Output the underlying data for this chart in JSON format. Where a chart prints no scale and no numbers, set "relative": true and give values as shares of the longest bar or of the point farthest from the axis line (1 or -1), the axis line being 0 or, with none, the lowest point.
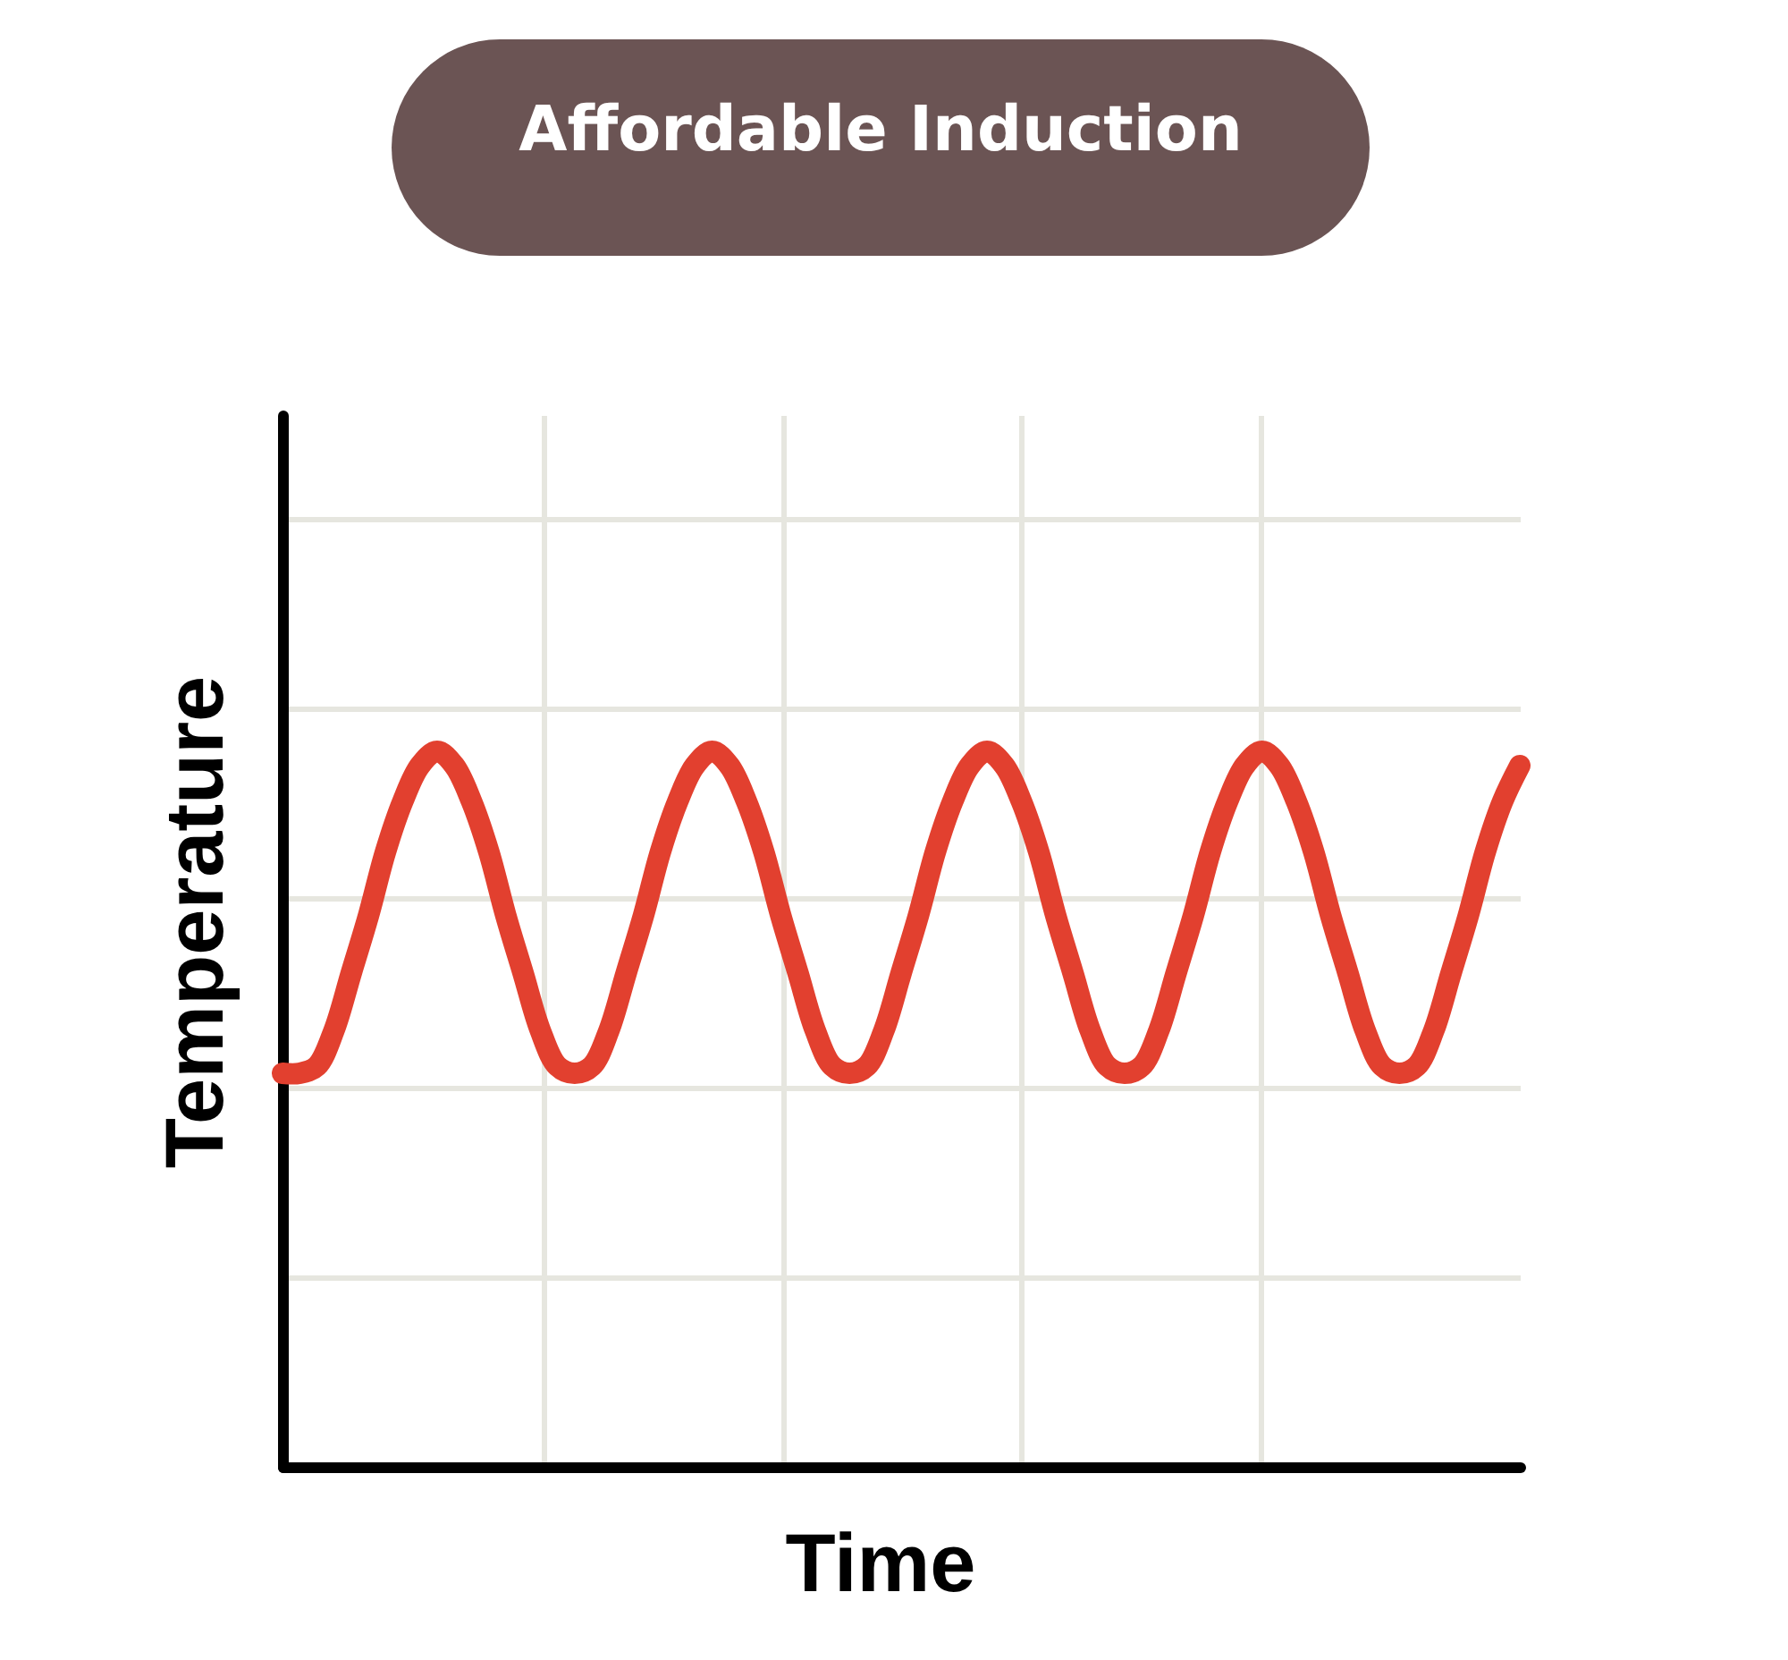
{
  "chart_data": {
    "type": "line",
    "title": "Affordable Induction",
    "xlabel": "Time",
    "ylabel": "Temperature",
    "relative": true,
    "grid": true,
    "categories": [
      null,
      null,
      null,
      null,
      null,
      null,
      null,
      null,
      null,
      null,
      null,
      null,
      null,
      null,
      null,
      null,
      null,
      null,
      null,
      null,
      null,
      null,
      null,
      null,
      null,
      null,
      null,
      null,
      null,
      null,
      null,
      null,
      null,
      null,
      null,
      null,
      null,
      null,
      null,
      null,
      null,
      null,
      null,
      null,
      null,
      null,
      null,
      null,
      null,
      null,
      null,
      null,
      null,
      null,
      null,
      null,
      null,
      null,
      null,
      null,
      null,
      null,
      null,
      null,
      null,
      null,
      null,
      null,
      null,
      null,
      null,
      null,
      null
    ],
    "series": [
      {
        "color": "#e2402f",
        "values": [
          0.55,
          0.55,
          0.56,
          0.61,
          0.69,
          0.77,
          0.86,
          0.93,
          0.98,
          1.0,
          0.98,
          0.93,
          0.86,
          0.77,
          0.69,
          0.61,
          0.56,
          0.55,
          0.56,
          0.61,
          0.69,
          0.77,
          0.86,
          0.93,
          0.98,
          1.0,
          0.98,
          0.93,
          0.86,
          0.77,
          0.69,
          0.61,
          0.56,
          0.55,
          0.56,
          0.61,
          0.69,
          0.77,
          0.86,
          0.93,
          0.98,
          1.0,
          0.98,
          0.93,
          0.86,
          0.77,
          0.69,
          0.61,
          0.56,
          0.55,
          0.56,
          0.61,
          0.69,
          0.77,
          0.86,
          0.93,
          0.98,
          1.0,
          0.98,
          0.93,
          0.86,
          0.77,
          0.69,
          0.61,
          0.56,
          0.55,
          0.56,
          0.61,
          0.69,
          0.77,
          0.86,
          0.93,
          0.98
        ]
      }
    ]
  }
}
